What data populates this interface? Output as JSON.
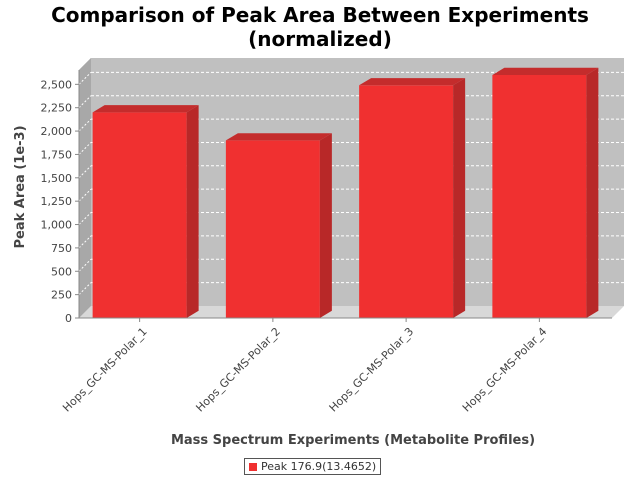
{
  "chart_data": {
    "type": "bar",
    "title": "Comparison of Peak Area Between Experiments\n(normalized)",
    "title_lines": [
      "Comparison of Peak Area Between Experiments",
      "(normalized)"
    ],
    "xlabel": "Mass Spectrum Experiments (Metabolite Profiles)",
    "ylabel": "Peak Area (1e-3)",
    "categories": [
      "Hops_GC-MS-Polar_1",
      "Hops_GC-MS-Polar_2",
      "Hops_GC-MS-Polar_3",
      "Hops_GC-MS-Polar_4"
    ],
    "series": [
      {
        "name": "Peak 176.9(13.4652)",
        "values": [
          2200,
          1900,
          2490,
          2600
        ]
      }
    ],
    "ylim": [
      0,
      2600
    ],
    "yticks": [
      0,
      250,
      500,
      750,
      1000,
      1250,
      1500,
      1750,
      2000,
      2250,
      2500
    ],
    "ytick_labels": [
      "0",
      "250",
      "500",
      "750",
      "1,000",
      "1,250",
      "1,500",
      "1,750",
      "2,000",
      "2,250",
      "2,500"
    ],
    "grid": true,
    "legend_position": "bottom",
    "style": "3d-bar",
    "colors": {
      "bar": "#f03030",
      "bar_side": "#b82828",
      "bar_top": "#c42c2c",
      "plot_bg": "#c0c0c0",
      "plot_wall": "#a8a8a8",
      "plot_floor": "#d8d8d8",
      "grid": "#ffffff"
    }
  }
}
